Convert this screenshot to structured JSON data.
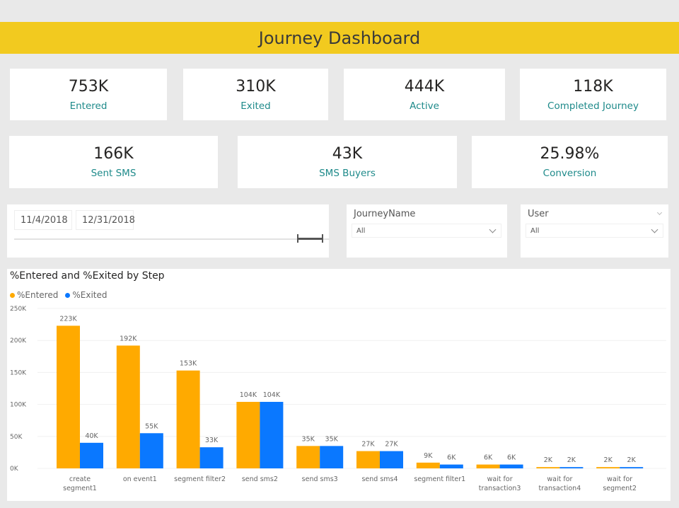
{
  "header": {
    "title": "Journey Dashboard"
  },
  "kpis_row1": [
    {
      "value": "753K",
      "label": "Entered"
    },
    {
      "value": "310K",
      "label": "Exited"
    },
    {
      "value": "444K",
      "label": "Active"
    },
    {
      "value": "118K",
      "label": "Completed Journey"
    }
  ],
  "kpis_row2": [
    {
      "value": "166K",
      "label": "Sent SMS"
    },
    {
      "value": "43K",
      "label": "SMS Buyers"
    },
    {
      "value": "25.98%",
      "label": "Conversion"
    }
  ],
  "date_slicer": {
    "start": "11/4/2018",
    "end": "12/31/2018"
  },
  "journey_slicer": {
    "label": "JourneyName",
    "value": "All"
  },
  "user_slicer": {
    "label": "User",
    "value": "All"
  },
  "colors": {
    "entered": "#ffaa00",
    "exited": "#0a78ff",
    "banner": "#f2ca1f"
  },
  "chart_data": {
    "type": "bar",
    "title": "%Entered and %Exited by Step",
    "xlabel": "",
    "ylabel": "",
    "ylim": [
      0,
      250000
    ],
    "yticks": [
      {
        "value": 0,
        "label": "0K"
      },
      {
        "value": 50000,
        "label": "50K"
      },
      {
        "value": 100000,
        "label": "100K"
      },
      {
        "value": 150000,
        "label": "150K"
      },
      {
        "value": 200000,
        "label": "200K"
      },
      {
        "value": 250000,
        "label": "250K"
      }
    ],
    "legend": {
      "position": "top-left"
    },
    "categories": [
      [
        "create",
        "segment1"
      ],
      [
        "on event1"
      ],
      [
        "segment filter2"
      ],
      [
        "send sms2"
      ],
      [
        "send sms3"
      ],
      [
        "send sms4"
      ],
      [
        "segment filter1"
      ],
      [
        "wait for",
        "transaction3"
      ],
      [
        "wait for",
        "transaction4"
      ],
      [
        "wait for",
        "segment2"
      ]
    ],
    "series": [
      {
        "name": "%Entered",
        "color": "#ffaa00",
        "values": [
          223000,
          192000,
          153000,
          104000,
          35000,
          27000,
          9000,
          6000,
          2000,
          2000
        ],
        "labels": [
          "223K",
          "192K",
          "153K",
          "104K",
          "35K",
          "27K",
          "9K",
          "6K",
          "2K",
          "2K"
        ]
      },
      {
        "name": "%Exited",
        "color": "#0a78ff",
        "values": [
          40000,
          55000,
          33000,
          104000,
          35000,
          27000,
          6000,
          6000,
          2000,
          2000
        ],
        "labels": [
          "40K",
          "55K",
          "33K",
          "104K",
          "35K",
          "27K",
          "6K",
          "6K",
          "2K",
          "2K"
        ]
      }
    ]
  }
}
